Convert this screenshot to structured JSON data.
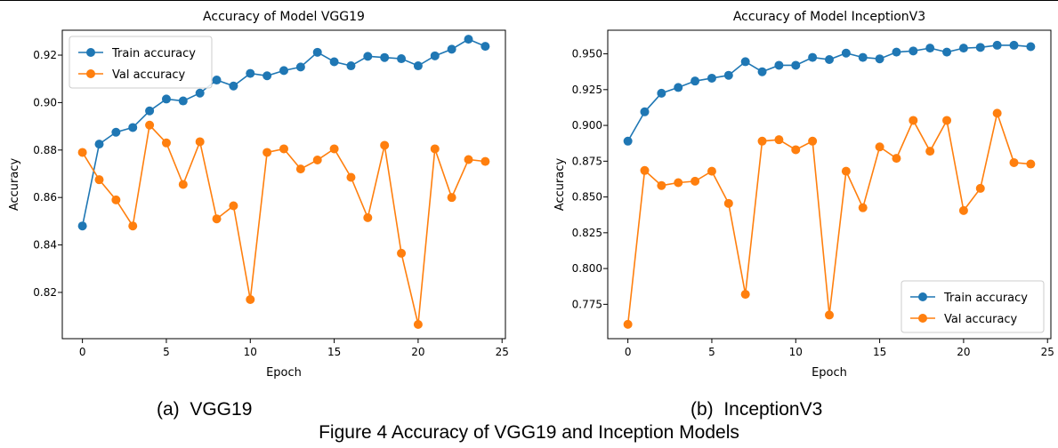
{
  "figure_caption": "Figure 4 Accuracy of VGG19 and Inception Models",
  "subcaptions": [
    "(a)  VGG19",
    "(b)  InceptionV3"
  ],
  "colors": {
    "train": "#1f77b4",
    "val": "#ff7f0e",
    "axis": "#000000"
  },
  "chart_data": [
    {
      "type": "line",
      "title": "Accuracy of Model VGG19",
      "xlabel": "Epoch",
      "ylabel": "Accuracy",
      "xlim": [
        -1.2,
        25.2
      ],
      "ylim": [
        0.8005,
        0.9305
      ],
      "xticks": [
        0,
        5,
        10,
        15,
        20,
        25
      ],
      "yticks": [
        0.82,
        0.84,
        0.86,
        0.88,
        0.9,
        0.92
      ],
      "ytick_labels": [
        "0.82",
        "0.84",
        "0.86",
        "0.88",
        "0.90",
        "0.92"
      ],
      "legend": "top-left",
      "grid": false,
      "x": [
        0,
        1,
        2,
        3,
        4,
        5,
        6,
        7,
        8,
        9,
        10,
        11,
        12,
        13,
        14,
        15,
        16,
        17,
        18,
        19,
        20,
        21,
        22,
        23,
        24
      ],
      "series": [
        {
          "name": "Train accuracy",
          "color_key": "train",
          "values": [
            0.848,
            0.8825,
            0.8875,
            0.8895,
            0.8965,
            0.9015,
            0.9007,
            0.904,
            0.9095,
            0.907,
            0.9123,
            0.9113,
            0.9135,
            0.915,
            0.9212,
            0.9172,
            0.9155,
            0.9195,
            0.919,
            0.9185,
            0.9155,
            0.9197,
            0.9225,
            0.9267,
            0.9237
          ]
        },
        {
          "name": "Val accuracy",
          "color_key": "val",
          "values": [
            0.879,
            0.8675,
            0.859,
            0.848,
            0.8905,
            0.883,
            0.8655,
            0.8835,
            0.851,
            0.8565,
            0.817,
            0.879,
            0.8805,
            0.872,
            0.8758,
            0.8805,
            0.8685,
            0.8515,
            0.882,
            0.8365,
            0.8065,
            0.8805,
            0.86,
            0.876,
            0.8752
          ]
        }
      ]
    },
    {
      "type": "line",
      "title": "Accuracy of Model InceptionV3",
      "xlabel": "Epoch",
      "ylabel": "Accuracy",
      "xlim": [
        -1.2,
        25.2
      ],
      "ylim": [
        0.751,
        0.9665
      ],
      "xticks": [
        0,
        5,
        10,
        15,
        20,
        25
      ],
      "yticks": [
        0.775,
        0.8,
        0.825,
        0.85,
        0.875,
        0.9,
        0.925,
        0.95
      ],
      "ytick_labels": [
        "0.775",
        "0.800",
        "0.825",
        "0.850",
        "0.875",
        "0.900",
        "0.925",
        "0.950"
      ],
      "legend": "bottom-right",
      "grid": false,
      "x": [
        0,
        1,
        2,
        3,
        4,
        5,
        6,
        7,
        8,
        9,
        10,
        11,
        12,
        13,
        14,
        15,
        16,
        17,
        18,
        19,
        20,
        21,
        22,
        23,
        24
      ],
      "series": [
        {
          "name": "Train accuracy",
          "color_key": "train",
          "values": [
            0.889,
            0.9095,
            0.9225,
            0.9265,
            0.931,
            0.933,
            0.935,
            0.9445,
            0.9375,
            0.942,
            0.942,
            0.9475,
            0.946,
            0.9505,
            0.9475,
            0.9465,
            0.9512,
            0.952,
            0.954,
            0.9512,
            0.954,
            0.9545,
            0.956,
            0.956,
            0.955
          ]
        },
        {
          "name": "Val accuracy",
          "color_key": "val",
          "values": [
            0.761,
            0.8685,
            0.858,
            0.86,
            0.861,
            0.868,
            0.8455,
            0.782,
            0.889,
            0.89,
            0.883,
            0.889,
            0.7675,
            0.868,
            0.8425,
            0.885,
            0.877,
            0.9035,
            0.882,
            0.9035,
            0.8405,
            0.856,
            0.9085,
            0.874,
            0.873
          ]
        }
      ]
    }
  ]
}
